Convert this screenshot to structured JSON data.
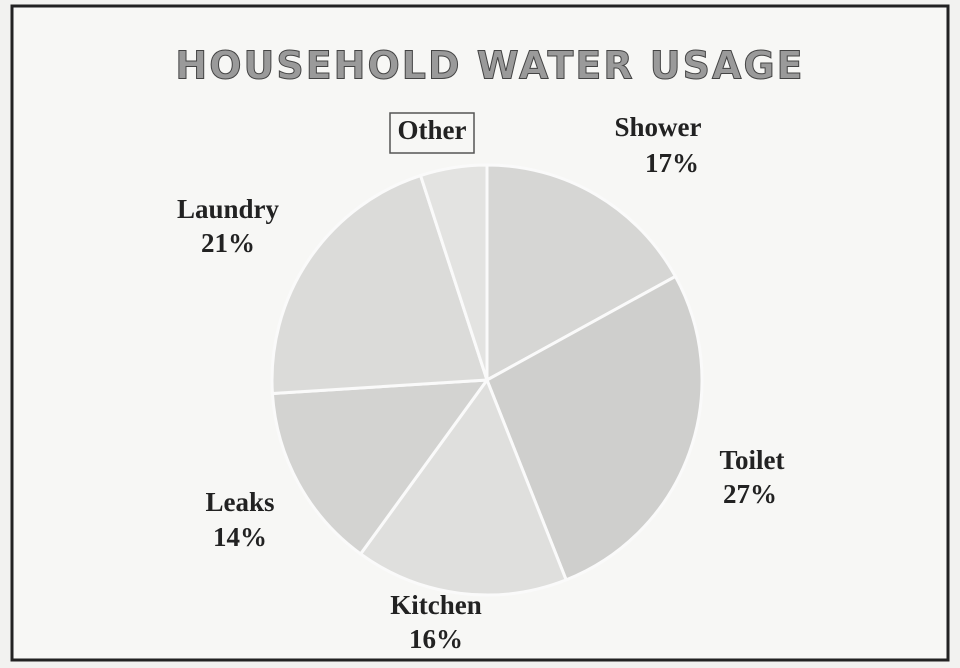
{
  "chart_data": {
    "type": "pie",
    "title": "HOUSEHOLD WATER USAGE",
    "categories": [
      "Shower",
      "Toilet",
      "Kitchen",
      "Leaks",
      "Laundry",
      "Other"
    ],
    "values": [
      17,
      27,
      16,
      14,
      21,
      5
    ],
    "value_labels": [
      "17%",
      "27%",
      "16%",
      "14%",
      "21%",
      null
    ],
    "colors": [
      "#d6d6d4",
      "#cfcfcd",
      "#dfdfdd",
      "#d3d3d1",
      "#dbdbd9",
      "#e3e3e1"
    ]
  }
}
